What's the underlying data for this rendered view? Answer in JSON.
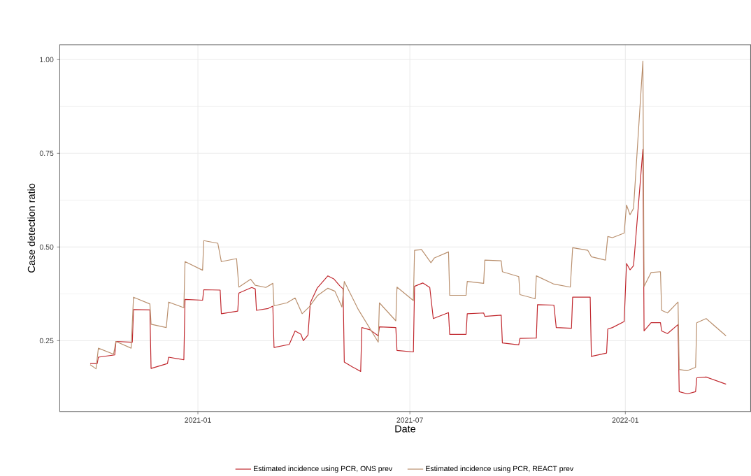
{
  "chart_data": {
    "type": "line",
    "xlabel": "Date",
    "ylabel": "Case detection ratio",
    "xlim": [
      "2020-09-05",
      "2022-04-18"
    ],
    "ylim": [
      0.061,
      1.04
    ],
    "xticks": [
      {
        "value": "2021-01-01",
        "label": "2021-01"
      },
      {
        "value": "2021-07-01",
        "label": "2021-07"
      },
      {
        "value": "2022-01-01",
        "label": "2022-01"
      }
    ],
    "yticks": [
      {
        "value": 0.25,
        "label": "0.25"
      },
      {
        "value": 0.5,
        "label": "0.50"
      },
      {
        "value": 0.75,
        "label": "0.75"
      },
      {
        "value": 1.0,
        "label": "1.00"
      }
    ],
    "grid": true,
    "legend": "bottom",
    "series": [
      {
        "name": "Estimated incidence using PCR, ONS prev",
        "color": "#c0272d",
        "x": [
          "2020-10-01",
          "2020-10-07",
          "2020-10-08",
          "2020-10-22",
          "2020-10-23",
          "2020-11-06",
          "2020-11-07",
          "2020-11-21",
          "2020-11-22",
          "2020-12-06",
          "2020-12-07",
          "2020-12-20",
          "2020-12-21",
          "2021-01-05",
          "2021-01-06",
          "2021-01-20",
          "2021-01-21",
          "2021-02-04",
          "2021-02-05",
          "2021-02-16",
          "2021-02-19",
          "2021-02-20",
          "2021-03-02",
          "2021-03-06",
          "2021-03-07",
          "2021-03-20",
          "2021-03-25",
          "2021-03-30",
          "2021-04-01",
          "2021-04-05",
          "2021-04-07",
          "2021-04-13",
          "2021-04-22",
          "2021-04-27",
          "2021-05-02",
          "2021-05-05",
          "2021-05-06",
          "2021-05-13",
          "2021-05-20",
          "2021-05-21",
          "2021-05-28",
          "2021-06-04",
          "2021-06-05",
          "2021-06-19",
          "2021-06-20",
          "2021-07-04",
          "2021-07-05",
          "2021-07-12",
          "2021-07-18",
          "2021-07-21",
          "2021-08-03",
          "2021-08-04",
          "2021-08-18",
          "2021-08-19",
          "2021-09-02",
          "2021-09-03",
          "2021-09-17",
          "2021-09-18",
          "2021-10-02",
          "2021-10-03",
          "2021-10-17",
          "2021-10-18",
          "2021-11-01",
          "2021-11-03",
          "2021-11-16",
          "2021-11-17",
          "2021-12-02",
          "2021-12-03",
          "2021-12-16",
          "2021-12-17",
          "2021-12-21",
          "2021-12-31",
          "2022-01-02",
          "2022-01-05",
          "2022-01-08",
          "2022-01-16",
          "2022-01-17",
          "2022-01-23",
          "2022-01-31",
          "2022-02-01",
          "2022-02-06",
          "2022-02-15",
          "2022-02-16",
          "2022-02-23",
          "2022-03-02",
          "2022-03-03",
          "2022-03-11",
          "2022-03-28"
        ],
        "values": [
          0.189,
          0.189,
          0.206,
          0.212,
          0.248,
          0.246,
          0.333,
          0.332,
          0.176,
          0.189,
          0.206,
          0.199,
          0.36,
          0.358,
          0.386,
          0.385,
          0.322,
          0.329,
          0.377,
          0.392,
          0.388,
          0.331,
          0.336,
          0.342,
          0.232,
          0.24,
          0.276,
          0.267,
          0.25,
          0.265,
          0.351,
          0.391,
          0.423,
          0.415,
          0.397,
          0.388,
          0.193,
          0.18,
          0.168,
          0.285,
          0.279,
          0.263,
          0.287,
          0.285,
          0.224,
          0.22,
          0.395,
          0.404,
          0.392,
          0.309,
          0.325,
          0.267,
          0.267,
          0.322,
          0.324,
          0.315,
          0.318,
          0.244,
          0.239,
          0.256,
          0.257,
          0.346,
          0.345,
          0.285,
          0.283,
          0.366,
          0.366,
          0.208,
          0.217,
          0.281,
          0.285,
          0.301,
          0.456,
          0.439,
          0.45,
          0.761,
          0.276,
          0.298,
          0.298,
          0.276,
          0.269,
          0.293,
          0.114,
          0.108,
          0.114,
          0.151,
          0.153,
          0.134
        ]
      },
      {
        "name": "Estimated incidence using PCR, REACT prev",
        "color": "#b98f6d",
        "x": [
          "2020-10-01",
          "2020-10-06",
          "2020-10-08",
          "2020-10-21",
          "2020-10-23",
          "2020-11-05",
          "2020-11-07",
          "2020-11-21",
          "2020-11-22",
          "2020-12-05",
          "2020-12-07",
          "2020-12-20",
          "2020-12-21",
          "2021-01-05",
          "2021-01-06",
          "2021-01-18",
          "2021-01-21",
          "2021-02-03",
          "2021-02-05",
          "2021-02-15",
          "2021-02-19",
          "2021-02-28",
          "2021-03-06",
          "2021-03-07",
          "2021-03-18",
          "2021-03-25",
          "2021-03-31",
          "2021-04-06",
          "2021-04-13",
          "2021-04-22",
          "2021-04-28",
          "2021-05-04",
          "2021-05-06",
          "2021-05-18",
          "2021-06-04",
          "2021-06-05",
          "2021-06-19",
          "2021-06-20",
          "2021-07-04",
          "2021-07-05",
          "2021-07-11",
          "2021-07-19",
          "2021-07-22",
          "2021-08-03",
          "2021-08-04",
          "2021-08-18",
          "2021-08-19",
          "2021-09-02",
          "2021-09-03",
          "2021-09-17",
          "2021-09-18",
          "2021-10-02",
          "2021-10-03",
          "2021-10-16",
          "2021-10-17",
          "2021-11-01",
          "2021-11-15",
          "2021-11-17",
          "2021-11-30",
          "2021-12-03",
          "2021-12-15",
          "2021-12-17",
          "2021-12-21",
          "2021-12-31",
          "2022-01-02",
          "2022-01-05",
          "2022-01-08",
          "2022-01-16",
          "2022-01-17",
          "2022-01-23",
          "2022-01-31",
          "2022-02-01",
          "2022-02-06",
          "2022-02-15",
          "2022-02-16",
          "2022-02-23",
          "2022-03-02",
          "2022-03-03",
          "2022-03-11",
          "2022-03-28"
        ],
        "values": [
          0.186,
          0.175,
          0.23,
          0.214,
          0.248,
          0.23,
          0.366,
          0.348,
          0.294,
          0.285,
          0.353,
          0.338,
          0.461,
          0.438,
          0.517,
          0.51,
          0.461,
          0.469,
          0.393,
          0.414,
          0.398,
          0.392,
          0.403,
          0.343,
          0.351,
          0.364,
          0.322,
          0.34,
          0.37,
          0.39,
          0.382,
          0.34,
          0.408,
          0.333,
          0.246,
          0.351,
          0.303,
          0.393,
          0.357,
          0.491,
          0.493,
          0.458,
          0.471,
          0.487,
          0.371,
          0.371,
          0.408,
          0.403,
          0.465,
          0.463,
          0.434,
          0.421,
          0.373,
          0.362,
          0.423,
          0.401,
          0.393,
          0.498,
          0.491,
          0.474,
          0.465,
          0.528,
          0.525,
          0.537,
          0.612,
          0.586,
          0.603,
          0.996,
          0.395,
          0.432,
          0.434,
          0.331,
          0.324,
          0.353,
          0.173,
          0.17,
          0.179,
          0.298,
          0.309,
          0.263
        ]
      }
    ]
  }
}
